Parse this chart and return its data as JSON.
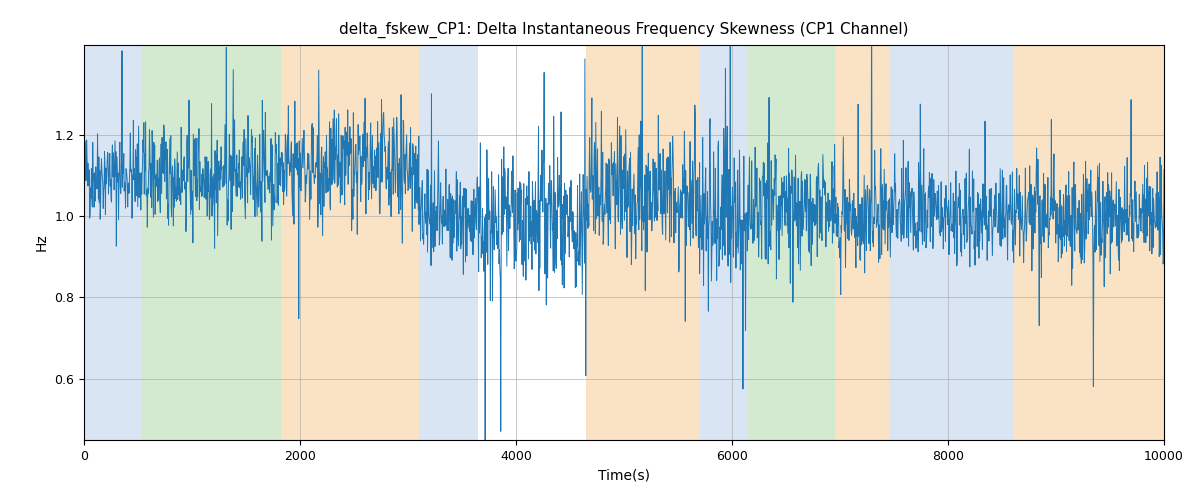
{
  "title": "delta_fskew_CP1: Delta Instantaneous Frequency Skewness (CP1 Channel)",
  "xlabel": "Time(s)",
  "ylabel": "Hz",
  "xlim": [
    0,
    10000
  ],
  "ylim": [
    0.45,
    1.42
  ],
  "line_color": "#1f77b4",
  "line_width": 0.7,
  "background_color": "#ffffff",
  "grid": true,
  "seed": 42,
  "n_points": 2500,
  "colored_regions": [
    {
      "xmin": 0,
      "xmax": 530,
      "color": "#aec6e8",
      "alpha": 0.45
    },
    {
      "xmin": 530,
      "xmax": 1820,
      "color": "#a8d5a2",
      "alpha": 0.5
    },
    {
      "xmin": 1820,
      "xmax": 3100,
      "color": "#f5c98a",
      "alpha": 0.5
    },
    {
      "xmin": 3100,
      "xmax": 3650,
      "color": "#aec6e8",
      "alpha": 0.45
    },
    {
      "xmin": 4650,
      "xmax": 5700,
      "color": "#f5c98a",
      "alpha": 0.5
    },
    {
      "xmin": 5700,
      "xmax": 6150,
      "color": "#aec6e8",
      "alpha": 0.45
    },
    {
      "xmin": 6150,
      "xmax": 6950,
      "color": "#a8d5a2",
      "alpha": 0.5
    },
    {
      "xmin": 6950,
      "xmax": 7450,
      "color": "#f5c98a",
      "alpha": 0.5
    },
    {
      "xmin": 7450,
      "xmax": 8600,
      "color": "#aec6e8",
      "alpha": 0.45
    },
    {
      "xmin": 8600,
      "xmax": 10100,
      "color": "#f5c98a",
      "alpha": 0.5
    }
  ],
  "segments": [
    {
      "xstart": 0,
      "xend": 530,
      "mean": 1.1,
      "std": 0.055,
      "spike_std_mult": 2.5,
      "spike_prob": 0.04
    },
    {
      "xstart": 530,
      "xend": 1820,
      "mean": 1.1,
      "std": 0.06,
      "spike_std_mult": 2.5,
      "spike_prob": 0.03
    },
    {
      "xstart": 1820,
      "xend": 3100,
      "mean": 1.12,
      "std": 0.065,
      "spike_std_mult": 3.0,
      "spike_prob": 0.04
    },
    {
      "xstart": 3100,
      "xend": 3650,
      "mean": 1.0,
      "std": 0.055,
      "spike_std_mult": 2.5,
      "spike_prob": 0.03
    },
    {
      "xstart": 3650,
      "xend": 4650,
      "mean": 0.98,
      "std": 0.09,
      "spike_std_mult": 3.5,
      "spike_prob": 0.05
    },
    {
      "xstart": 4650,
      "xend": 5700,
      "mean": 1.05,
      "std": 0.075,
      "spike_std_mult": 3.0,
      "spike_prob": 0.04
    },
    {
      "xstart": 5700,
      "xend": 6150,
      "mean": 1.0,
      "std": 0.1,
      "spike_std_mult": 3.5,
      "spike_prob": 0.05
    },
    {
      "xstart": 6150,
      "xend": 6950,
      "mean": 1.02,
      "std": 0.07,
      "spike_std_mult": 3.0,
      "spike_prob": 0.04
    },
    {
      "xstart": 6950,
      "xend": 7450,
      "mean": 1.0,
      "std": 0.075,
      "spike_std_mult": 3.0,
      "spike_prob": 0.04
    },
    {
      "xstart": 7450,
      "xend": 8600,
      "mean": 1.01,
      "std": 0.06,
      "spike_std_mult": 2.5,
      "spike_prob": 0.04
    },
    {
      "xstart": 8600,
      "xend": 10000,
      "mean": 1.0,
      "std": 0.06,
      "spike_std_mult": 2.5,
      "spike_prob": 0.04
    }
  ],
  "yticks": [
    0.6,
    0.8,
    1.0,
    1.2
  ],
  "xticks": [
    0,
    2000,
    4000,
    6000,
    8000,
    10000
  ],
  "figsize": [
    12.0,
    5.0
  ],
  "dpi": 100
}
